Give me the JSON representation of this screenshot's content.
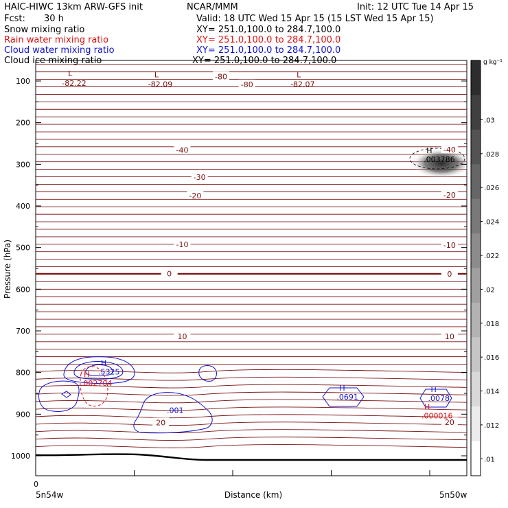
{
  "header": {
    "title": "HAIC-HIWC 13km ARW-GFS init",
    "org": "NCAR/MMM",
    "init": "Init: 12 UTC Tue 14 Apr 15",
    "fcst_label": "Fcst:",
    "fcst_value": "30 h",
    "valid": "Valid: 18 UTC Wed 15 Apr 15 (15 LST Wed 15 Apr 15)"
  },
  "fields": [
    {
      "name": "Snow mixing ratio",
      "xy": "XY= 251.0,100.0 to 284.7,100.0",
      "color": "#000000"
    },
    {
      "name": "Rain water mixing ratio",
      "xy": "XY= 251.0,100.0 to 284.7,100.0",
      "color": "#e01010"
    },
    {
      "name": "Cloud water mixing ratio",
      "xy": "XY= 251.0,100.0 to 284.7,100.0",
      "color": "#1010d0"
    },
    {
      "name": "Cloud ice mixing ratio",
      "xy": "XY= 251.0,100.0 to 284.7,100.0",
      "color": "#000000"
    }
  ],
  "chart_data": {
    "type": "contour",
    "xlabel": "Distance (km)",
    "ylabel": "Pressure (hPa)",
    "x_tick_labels": [
      "0"
    ],
    "x_start_label": "5n54w",
    "x_end_label": "5n50w",
    "y_ticks": [
      100,
      200,
      300,
      400,
      500,
      600,
      700,
      800,
      900,
      1000
    ],
    "ylim": [
      1050,
      50
    ],
    "temperature_contours": {
      "color": "#7a1010",
      "levels_labeled": [
        -80,
        -40,
        -30,
        -20,
        -10,
        0,
        10,
        20
      ],
      "labels": [
        "-80",
        "-80",
        "-40",
        "-40",
        "-30",
        "-20",
        "-20",
        "-10",
        "-10",
        "0",
        "0",
        "10",
        "10",
        "20",
        "20"
      ],
      "label_pressures": [
        89,
        108,
        266,
        265,
        331,
        375,
        374,
        492,
        494,
        562,
        563,
        713,
        713,
        920,
        919
      ],
      "label_x_frac": [
        0.43,
        0.49,
        0.34,
        0.96,
        0.38,
        0.37,
        0.96,
        0.34,
        0.96,
        0.31,
        0.96,
        0.34,
        0.96,
        0.29,
        0.96
      ]
    },
    "lows": [
      {
        "label": "L",
        "value": "-82.22",
        "pressure": 93
      },
      {
        "label": "L",
        "value": "-82.09",
        "pressure": 96
      },
      {
        "label": "L",
        "value": "-82.07",
        "pressure": 96
      }
    ],
    "maxima": [
      {
        "label": "H",
        "value": ".003786",
        "field": "Cloud ice mixing ratio",
        "pressure": 285
      },
      {
        "label": "H",
        "value": ".5325",
        "field": "Cloud water mixing ratio",
        "pressure": 795
      },
      {
        "label": "H",
        "value": ".002704",
        "field": "Rain water mixing ratio",
        "pressure": 822
      },
      {
        "label": "H",
        "value": ".0691",
        "field": "Cloud water mixing ratio",
        "pressure": 855
      },
      {
        "label": "H",
        "value": ".0078",
        "field": "Cloud water mixing ratio",
        "pressure": 858
      },
      {
        "label": "H",
        "value": ".000016",
        "field": "Rain water mixing ratio",
        "pressure": 900
      }
    ],
    "cloud_water_labels": [
      ".001"
    ],
    "colorbar": {
      "unit": "g kg⁻¹",
      "ticks": [
        ".01",
        ".012",
        ".014",
        ".016",
        ".018",
        ".02",
        ".022",
        ".024",
        ".026",
        ".028",
        ".03"
      ],
      "range": [
        0.009,
        0.0335
      ]
    }
  }
}
